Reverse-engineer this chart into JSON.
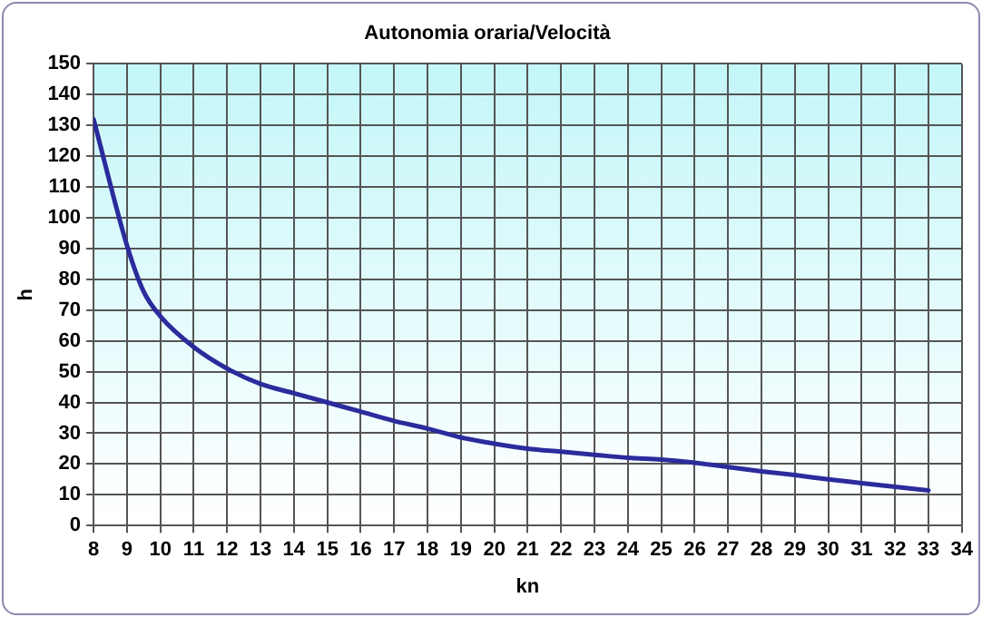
{
  "chart_data": {
    "type": "line",
    "title": "Autonomia oraria/Velocità",
    "xlabel": "kn",
    "ylabel": "h",
    "x": [
      8,
      9,
      9.5,
      10,
      11,
      12,
      13,
      14,
      15,
      16,
      17,
      18,
      19,
      20,
      21,
      22,
      23,
      24,
      25,
      26,
      27,
      28,
      29,
      30,
      31,
      32,
      33
    ],
    "series": [
      {
        "color": "#2b2b9c",
        "values": [
          132,
          91,
          76,
          68,
          58,
          51,
          46,
          43,
          40,
          37,
          34,
          31.5,
          28.6,
          26.6,
          25,
          24,
          23,
          22,
          21.4,
          20.4,
          19,
          17.6,
          16.4,
          15,
          13.8,
          12.6,
          11.4
        ]
      }
    ],
    "xlim": [
      8,
      34
    ],
    "xticks": [
      8,
      9,
      10,
      11,
      12,
      13,
      14,
      15,
      16,
      17,
      18,
      19,
      20,
      21,
      22,
      23,
      24,
      25,
      26,
      27,
      28,
      29,
      30,
      31,
      32,
      33,
      34
    ],
    "ylim": [
      0,
      150
    ],
    "yticks": [
      0,
      10,
      20,
      30,
      40,
      50,
      60,
      70,
      80,
      90,
      100,
      110,
      120,
      130,
      140,
      150
    ],
    "grid": true,
    "legend": false,
    "marker": "none",
    "line_style": "solid"
  }
}
